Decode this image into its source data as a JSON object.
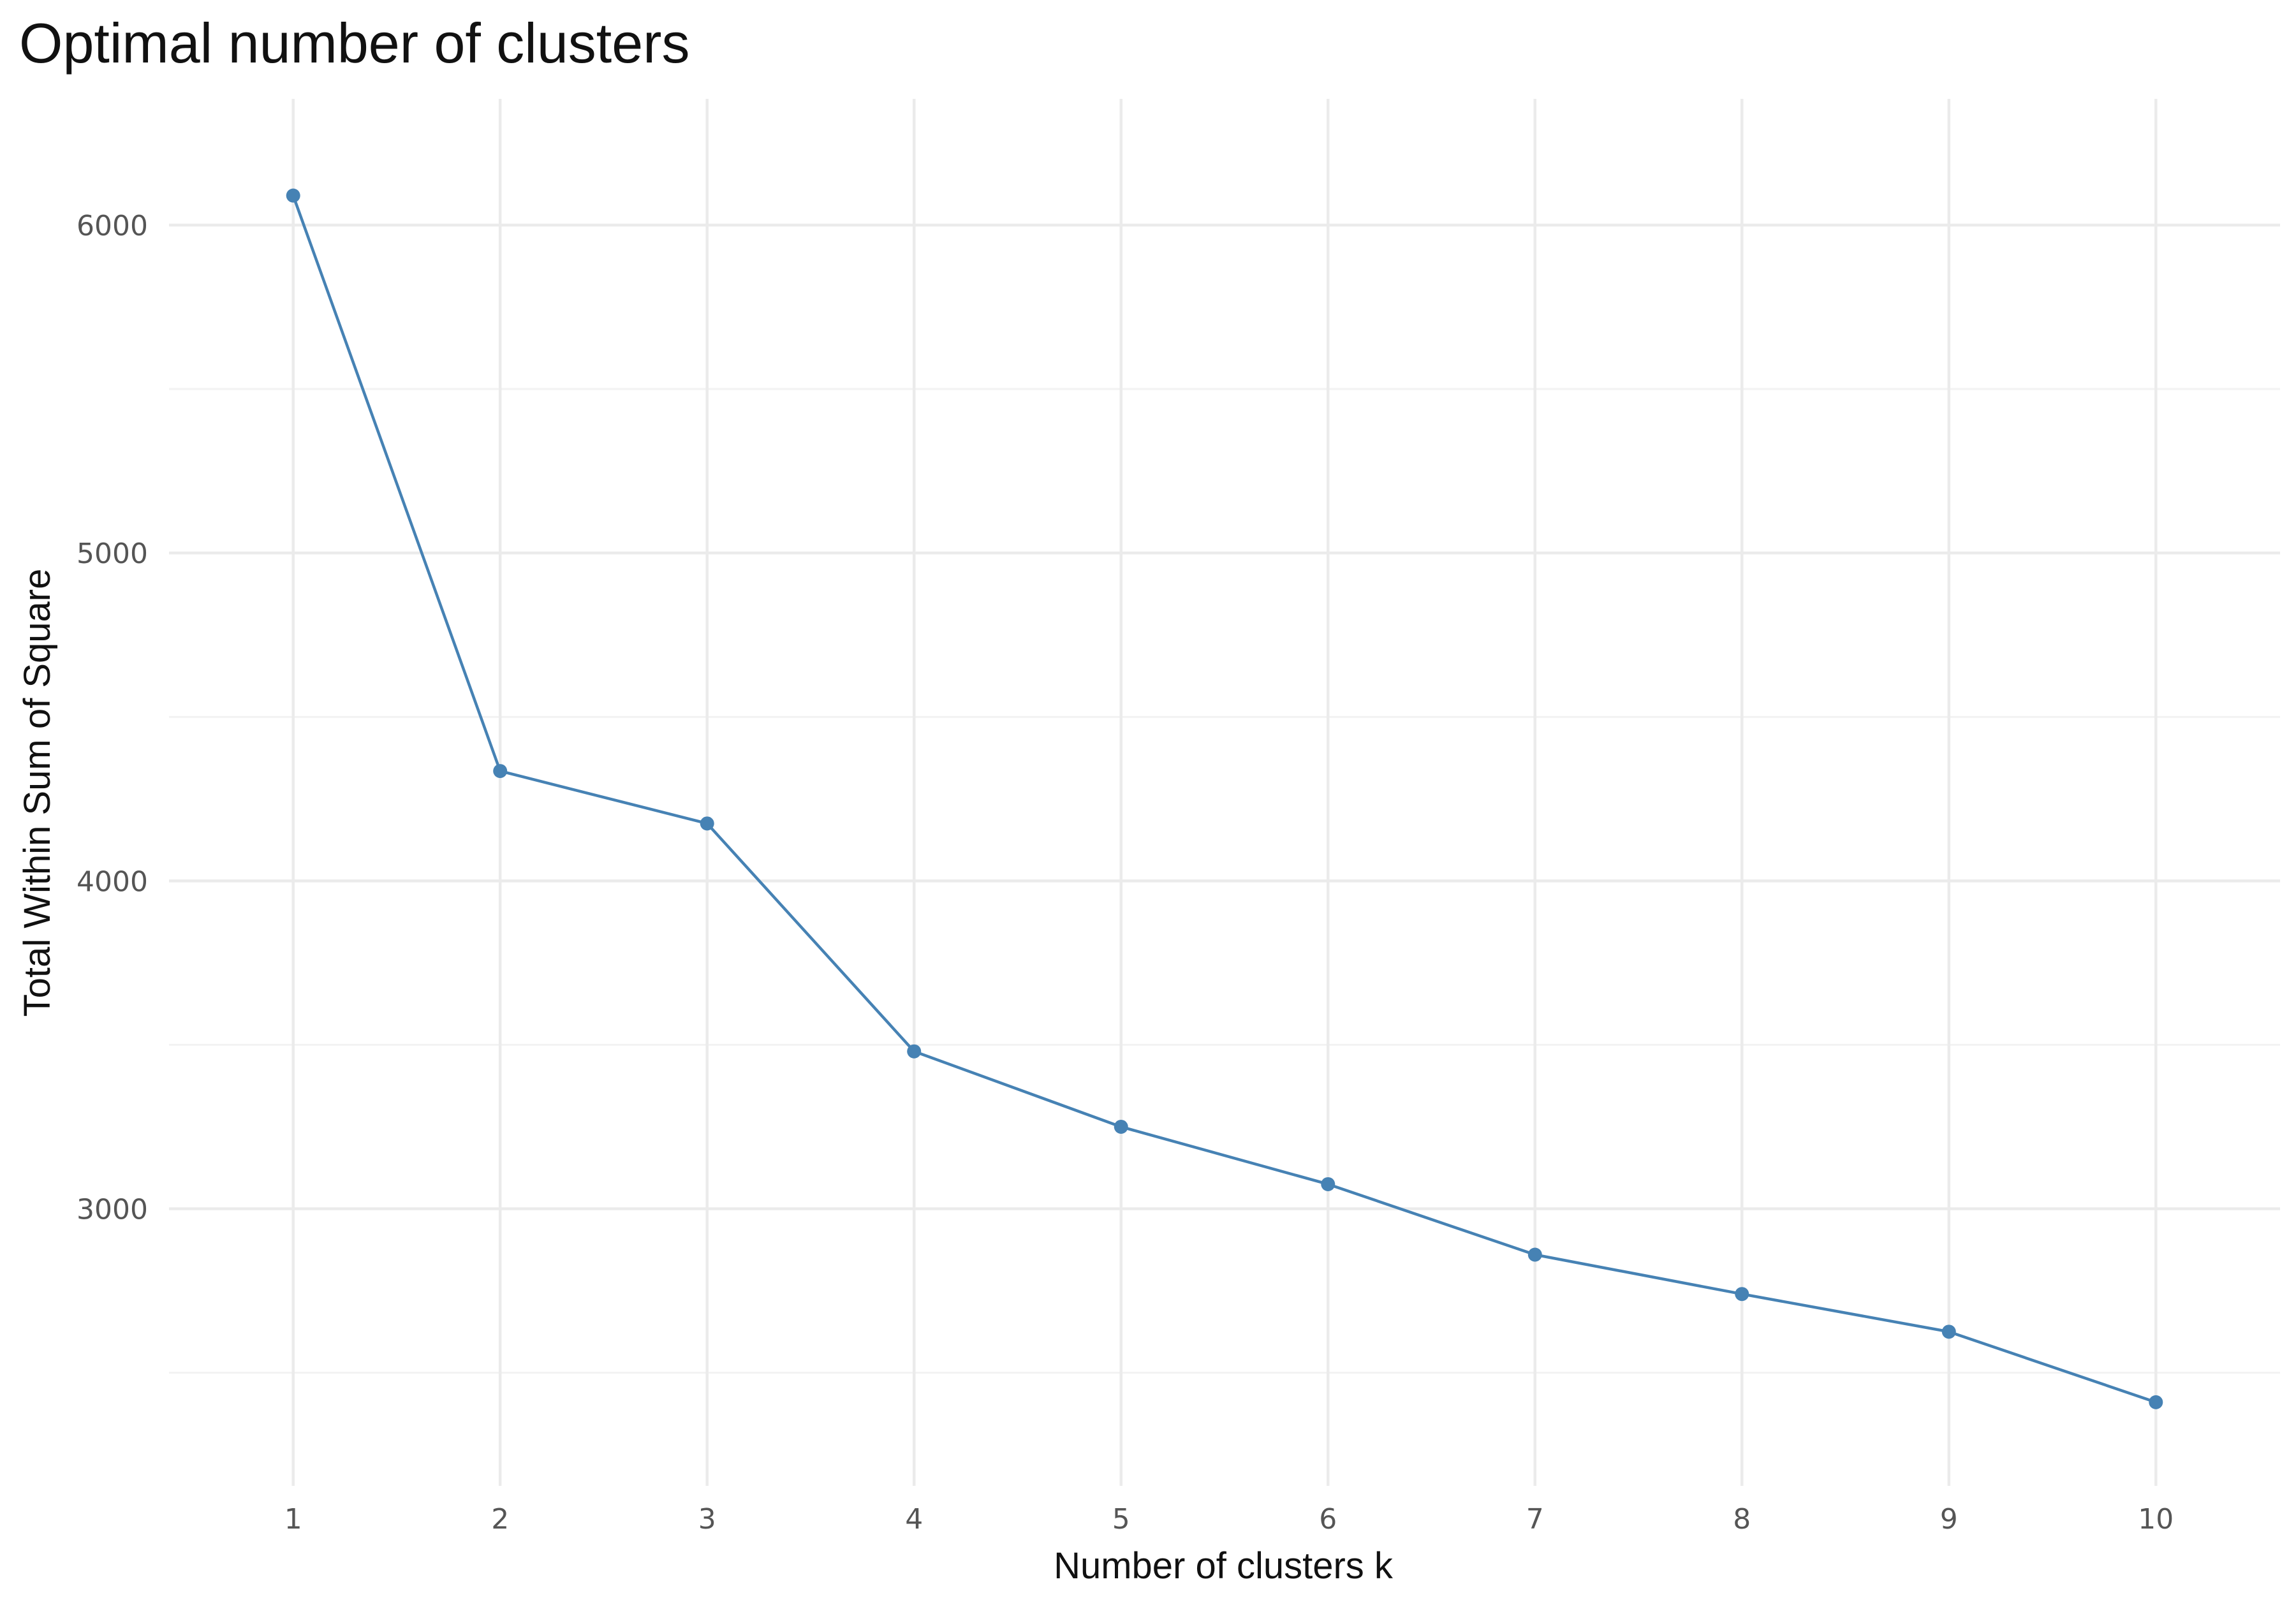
{
  "colors": {
    "series": "#4682B4",
    "grid_major": "#ebebeb",
    "grid_minor": "#f2f2f2",
    "tick_text": "#555555",
    "title_text": "#111111"
  },
  "chart_data": {
    "type": "line",
    "title": "Optimal number of clusters",
    "xlabel": "Number of clusters k",
    "ylabel": "Total Within Sum of Square",
    "x": [
      1,
      2,
      3,
      4,
      5,
      6,
      7,
      8,
      9,
      10
    ],
    "x_tick_labels": [
      "1",
      "2",
      "3",
      "4",
      "5",
      "6",
      "7",
      "8",
      "9",
      "10"
    ],
    "series": [
      {
        "values": [
          6090,
          4335,
          4175,
          3480,
          3250,
          3075,
          2860,
          2740,
          2625,
          2410
        ]
      }
    ],
    "ylim": [
      2155,
      6385
    ],
    "y_ticks": [
      3000,
      4000,
      5000,
      6000
    ],
    "y_tick_labels": [
      "3000",
      "4000",
      "5000",
      "6000"
    ],
    "y_minor_ticks": [
      2500,
      3500,
      4500,
      5500
    ],
    "markers": true,
    "grid": true,
    "legend": "none"
  }
}
